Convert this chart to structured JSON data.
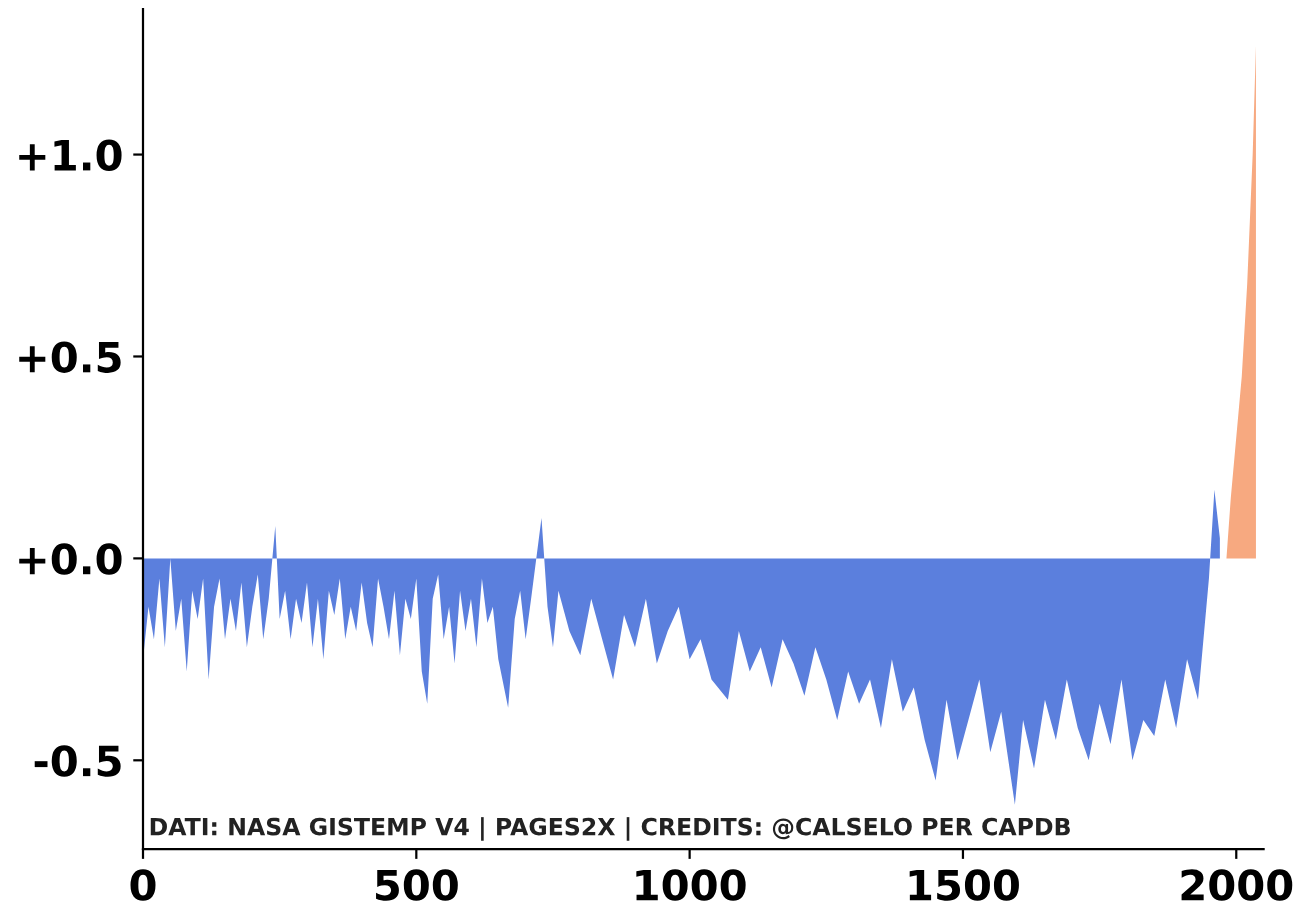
{
  "chart_data": {
    "type": "area",
    "series": [
      {
        "color": "#5b7fdd",
        "x": [
          0,
          10,
          20,
          30,
          40,
          50,
          60,
          70,
          80,
          90,
          100,
          110,
          120,
          130,
          140,
          150,
          160,
          170,
          180,
          190,
          200,
          210,
          220,
          230,
          242,
          250,
          260,
          270,
          280,
          290,
          300,
          310,
          320,
          330,
          340,
          350,
          360,
          370,
          380,
          390,
          400,
          410,
          420,
          430,
          440,
          450,
          460,
          470,
          480,
          490,
          500,
          510,
          520,
          530,
          540,
          550,
          560,
          570,
          580,
          590,
          600,
          610,
          620,
          630,
          640,
          650,
          668,
          680,
          690,
          700,
          710,
          729,
          740,
          750,
          760,
          780,
          800,
          820,
          840,
          860,
          880,
          900,
          920,
          940,
          960,
          980,
          1000,
          1020,
          1040,
          1070,
          1090,
          1110,
          1130,
          1150,
          1170,
          1190,
          1210,
          1230,
          1250,
          1270,
          1290,
          1310,
          1330,
          1350,
          1370,
          1390,
          1410,
          1430,
          1450,
          1470,
          1490,
          1510,
          1530,
          1550,
          1570,
          1595,
          1610,
          1630,
          1650,
          1670,
          1690,
          1710,
          1730,
          1750,
          1770,
          1790,
          1810,
          1830,
          1850,
          1870,
          1890,
          1910,
          1930,
          1950,
          1960,
          1970
        ],
        "values": [
          -0.25,
          -0.12,
          -0.2,
          -0.05,
          -0.22,
          0.0,
          -0.18,
          -0.1,
          -0.28,
          -0.08,
          -0.15,
          -0.05,
          -0.3,
          -0.12,
          -0.05,
          -0.2,
          -0.1,
          -0.18,
          -0.06,
          -0.22,
          -0.12,
          -0.04,
          -0.2,
          -0.1,
          0.08,
          -0.15,
          -0.08,
          -0.2,
          -0.1,
          -0.16,
          -0.06,
          -0.22,
          -0.1,
          -0.25,
          -0.08,
          -0.14,
          -0.05,
          -0.2,
          -0.12,
          -0.18,
          -0.06,
          -0.16,
          -0.22,
          -0.05,
          -0.12,
          -0.2,
          -0.08,
          -0.24,
          -0.1,
          -0.15,
          -0.05,
          -0.28,
          -0.36,
          -0.1,
          -0.04,
          -0.2,
          -0.12,
          -0.26,
          -0.08,
          -0.18,
          -0.1,
          -0.22,
          -0.05,
          -0.16,
          -0.12,
          -0.25,
          -0.37,
          -0.15,
          -0.08,
          -0.2,
          -0.1,
          0.1,
          -0.12,
          -0.22,
          -0.08,
          -0.18,
          -0.24,
          -0.1,
          -0.2,
          -0.3,
          -0.14,
          -0.22,
          -0.1,
          -0.26,
          -0.18,
          -0.12,
          -0.25,
          -0.2,
          -0.3,
          -0.35,
          -0.18,
          -0.28,
          -0.22,
          -0.32,
          -0.2,
          -0.26,
          -0.34,
          -0.22,
          -0.3,
          -0.4,
          -0.28,
          -0.36,
          -0.3,
          -0.42,
          -0.25,
          -0.38,
          -0.32,
          -0.45,
          -0.55,
          -0.35,
          -0.5,
          -0.4,
          -0.3,
          -0.48,
          -0.38,
          -0.61,
          -0.4,
          -0.52,
          -0.35,
          -0.45,
          -0.3,
          -0.42,
          -0.5,
          -0.36,
          -0.46,
          -0.3,
          -0.5,
          -0.4,
          -0.44,
          -0.3,
          -0.42,
          -0.25,
          -0.35,
          -0.05,
          0.17,
          0.05
        ]
      },
      {
        "color": "#f7a980",
        "x": [
          1982,
          1990,
          2000,
          2010,
          2020,
          2030,
          2036
        ],
        "values": [
          0.0,
          0.15,
          0.3,
          0.45,
          0.68,
          1.0,
          1.27
        ]
      }
    ],
    "xlim": [
      0,
      2050
    ],
    "xticks": [
      0,
      500,
      1000,
      1500,
      2000
    ],
    "ylim": [
      -0.72,
      1.36
    ],
    "yticks": [
      {
        "value": -0.5,
        "label": "-0.5"
      },
      {
        "value": 0.0,
        "label": "+0.0"
      },
      {
        "value": 0.5,
        "label": "+0.5"
      },
      {
        "value": 1.0,
        "label": "+1.0"
      }
    ],
    "grid": false,
    "legend": false,
    "annotations": [
      "DATI: NASA GISTEMP V4 | PAGES2X | CREDITS: @CALSELO PER CAPDB"
    ]
  }
}
